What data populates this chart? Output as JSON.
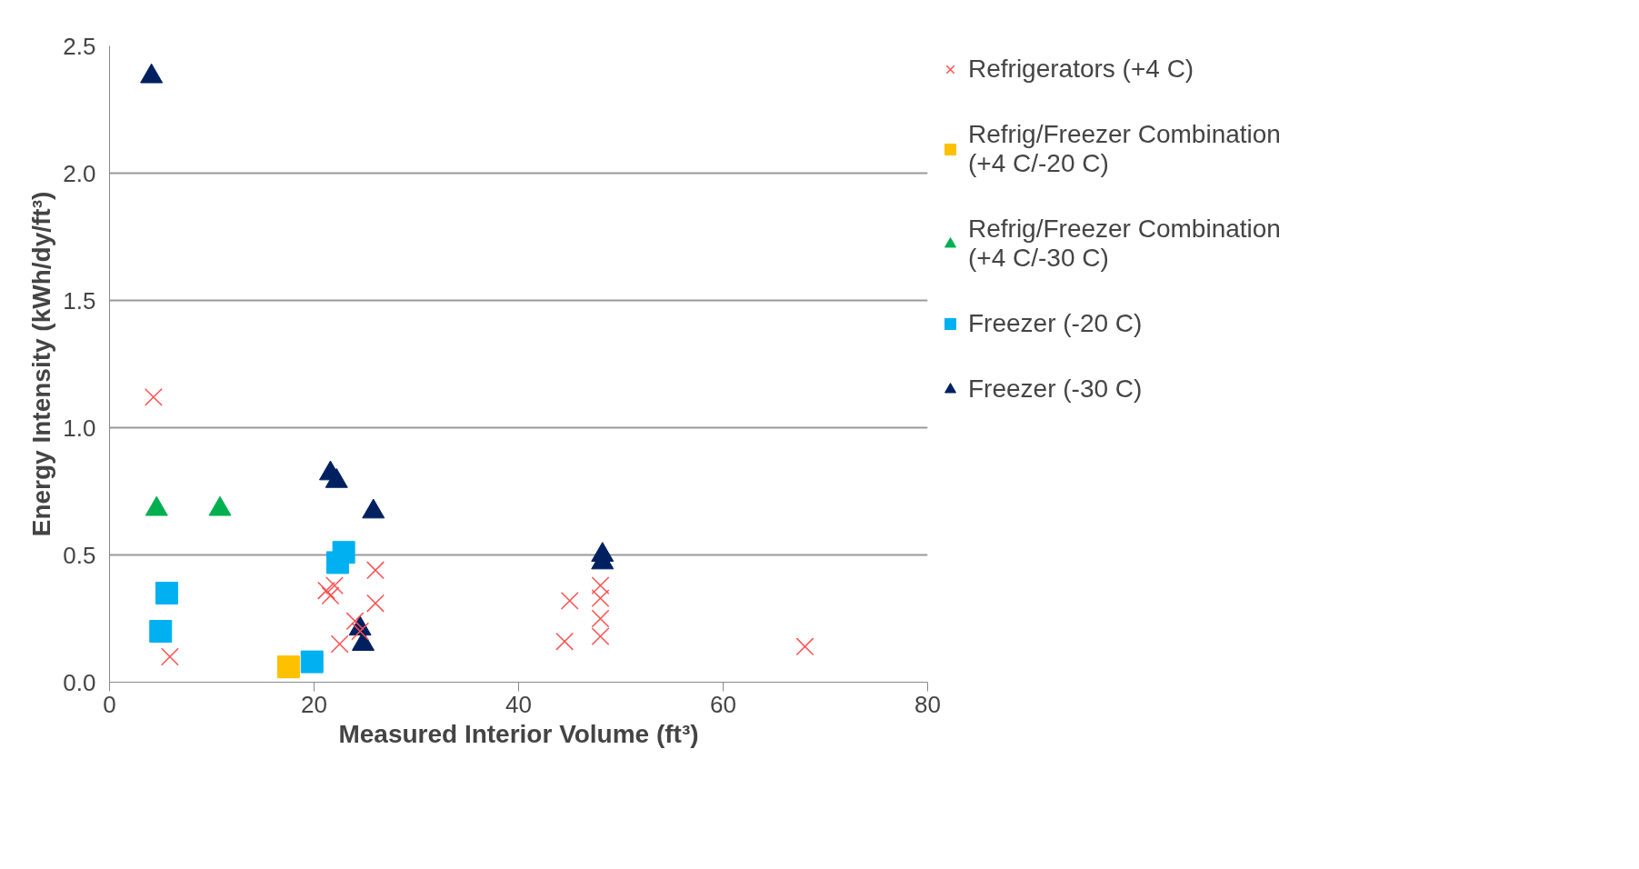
{
  "chart_data": {
    "type": "scatter",
    "xlabel": "Measured Interior Volume (ft³)",
    "ylabel": "Energy Intensity (kWh/dy/ft³)",
    "xlim": [
      0,
      80
    ],
    "xticks": [
      0,
      20,
      40,
      60,
      80
    ],
    "ylim": [
      0,
      2.5
    ],
    "yticks": [
      {
        "value": 0,
        "label": "0.0"
      },
      {
        "value": 0.5,
        "label": "0.5"
      },
      {
        "value": 1,
        "label": "1.0"
      },
      {
        "value": 1.5,
        "label": "1.5"
      },
      {
        "value": 2,
        "label": "2.0"
      },
      {
        "value": 2.5,
        "label": "2.5"
      }
    ],
    "grid": "y",
    "legend": "right",
    "series": [
      {
        "name": "Refrigerators (+4 C)",
        "color": "#ff5050",
        "marker": "cross",
        "x": [
          4.3,
          5.9,
          21.2,
          21.6,
          22.0,
          22.5,
          24.0,
          24.5,
          26.0,
          26.0,
          44.5,
          45.0,
          48.0,
          48.0,
          48.0,
          48.0,
          68.0
        ],
        "values": [
          1.12,
          0.1,
          0.36,
          0.34,
          0.38,
          0.15,
          0.24,
          0.2,
          0.44,
          0.31,
          0.16,
          0.32,
          0.38,
          0.33,
          0.25,
          0.18,
          0.14
        ]
      },
      {
        "name": "Refrig/Freezer Combination\n(+4 C/-20 C)",
        "color": "#ffc000",
        "marker": "square",
        "x": [
          17.5
        ],
        "values": [
          0.06
        ]
      },
      {
        "name": "Refrig/Freezer Combination\n(+4 C/-30 C)",
        "color": "#00b050",
        "marker": "triangle",
        "x": [
          4.6,
          10.8
        ],
        "values": [
          0.68,
          0.68
        ]
      },
      {
        "name": "Freezer (-20 C)",
        "color": "#00b0f0",
        "marker": "square",
        "x": [
          5.0,
          5.6,
          19.8,
          22.3,
          22.9
        ],
        "values": [
          0.2,
          0.35,
          0.08,
          0.47,
          0.51
        ]
      },
      {
        "name": "Freezer (-30 C)",
        "color": "#002060",
        "marker": "triangle",
        "x": [
          4.1,
          21.6,
          22.2,
          25.8,
          24.5,
          24.8,
          48.2,
          48.2
        ],
        "values": [
          2.38,
          0.82,
          0.79,
          0.67,
          0.21,
          0.15,
          0.5,
          0.47
        ]
      }
    ]
  }
}
